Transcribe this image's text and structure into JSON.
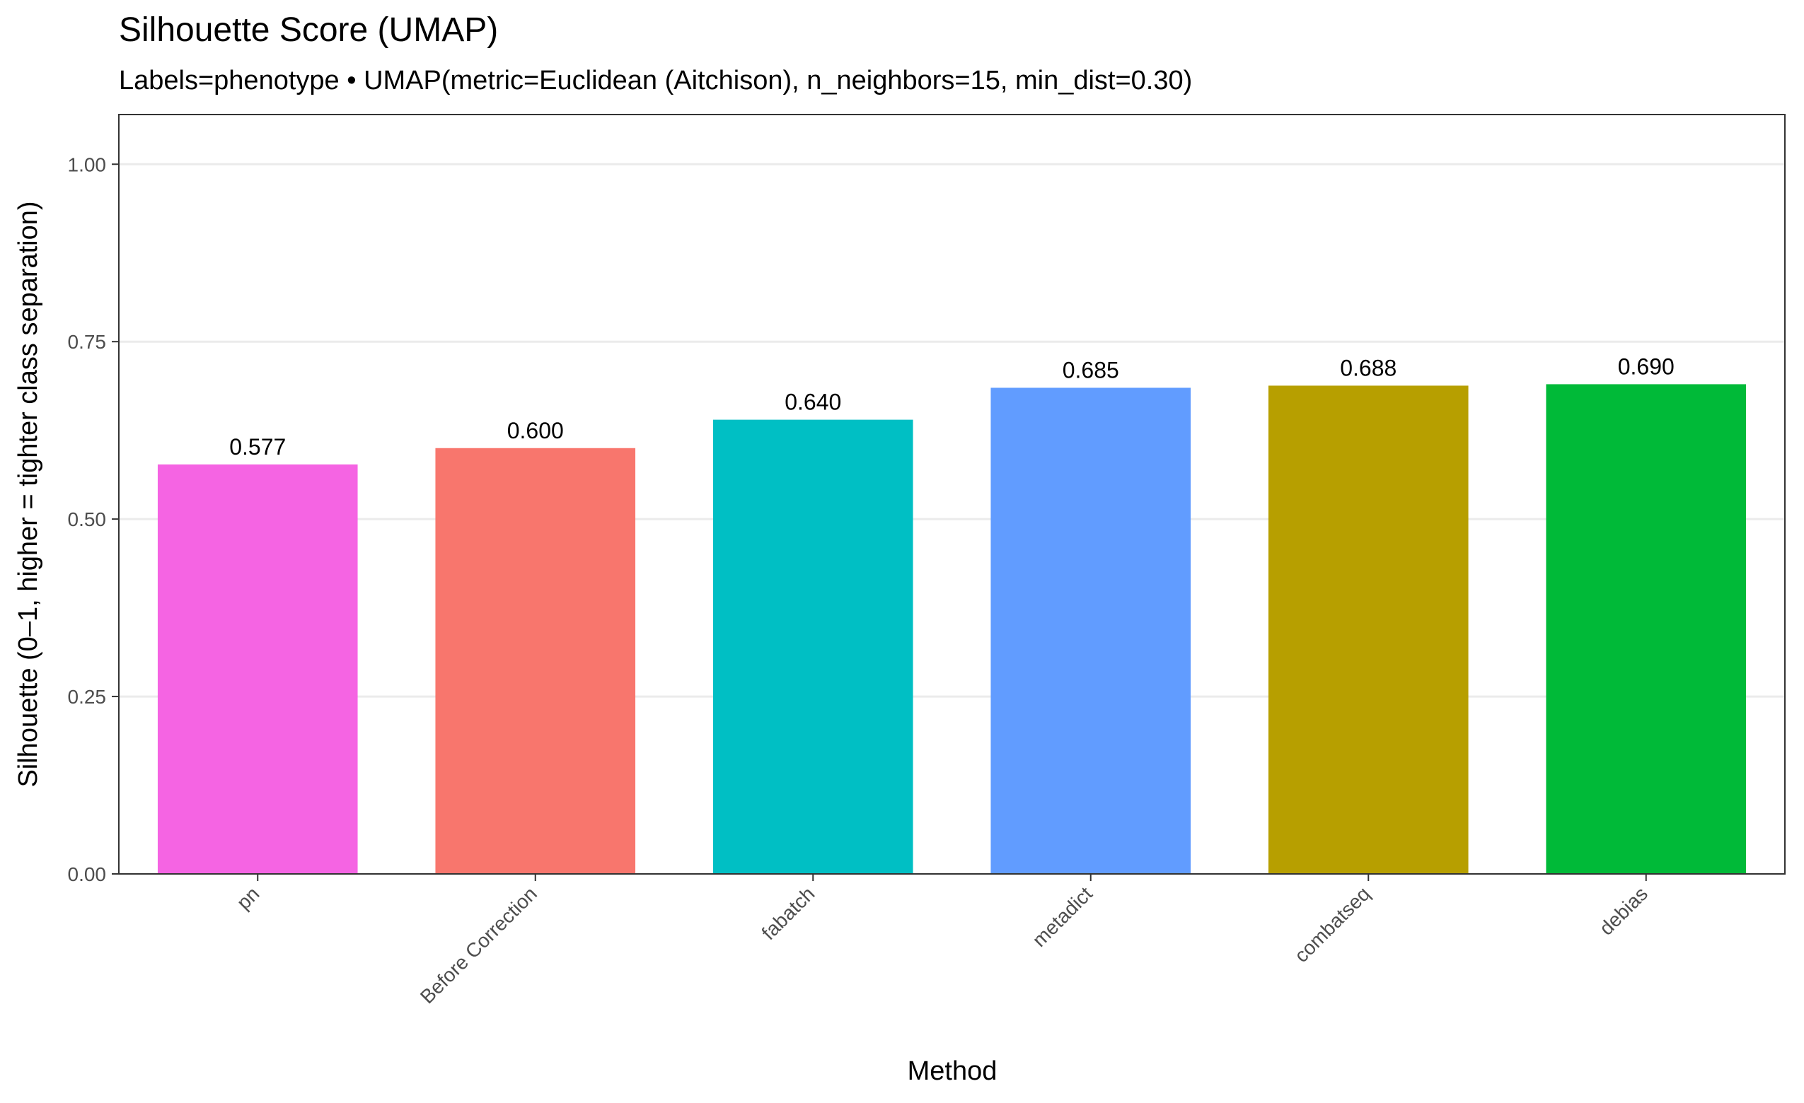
{
  "chart_data": {
    "type": "bar",
    "title": "Silhouette Score (UMAP)",
    "subtitle": "Labels=phenotype • UMAP(metric=Euclidean (Aitchison), n_neighbors=15, min_dist=0.30)",
    "xlabel": "Method",
    "ylabel": "Silhouette (0–1, higher = tighter class separation)",
    "categories": [
      "pn",
      "Before Correction",
      "fabatch",
      "metadict",
      "combatseq",
      "debias"
    ],
    "values": [
      0.577,
      0.6,
      0.64,
      0.685,
      0.688,
      0.69
    ],
    "value_labels": [
      "0.577",
      "0.600",
      "0.640",
      "0.685",
      "0.688",
      "0.690"
    ],
    "colors": [
      "#F564E3",
      "#F8766D",
      "#00BFC4",
      "#619CFF",
      "#B79F00",
      "#00BA38"
    ],
    "ylim": [
      0,
      1.07
    ],
    "yticks": [
      0,
      0.25,
      0.5,
      0.75,
      1.0
    ],
    "ytick_labels": [
      "0.00",
      "0.25",
      "0.50",
      "0.75",
      "1.00"
    ],
    "grid": true,
    "legend": "none"
  }
}
